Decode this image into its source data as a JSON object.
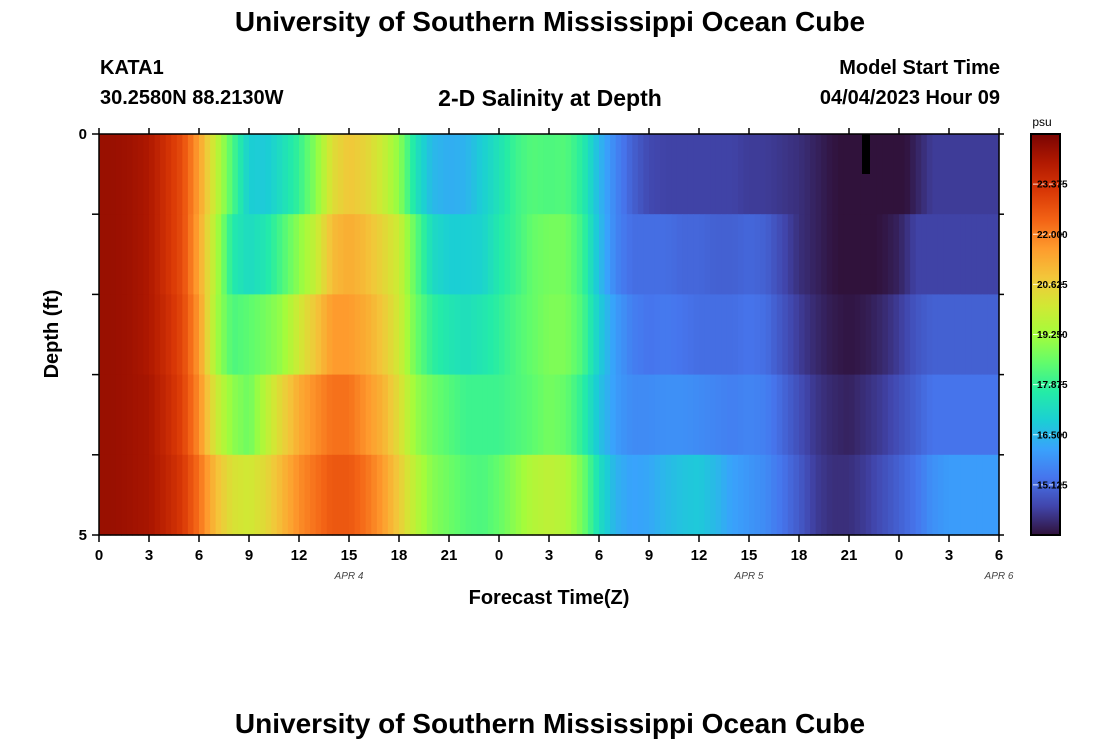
{
  "page": {
    "title": "University of Southern Mississippi Ocean Cube",
    "footer_title": "University of Southern Mississippi Ocean Cube",
    "station": "KATA1",
    "coords": "30.2580N  88.2130W",
    "subtitle": "2-D Salinity at Depth",
    "model_start_label": "Model Start Time",
    "model_start_value": "04/04/2023 Hour 09"
  },
  "chart_data": {
    "type": "heatmap",
    "title": "2-D Salinity at Depth",
    "xlabel": "Forecast Time(Z)",
    "ylabel": "Depth (ft)",
    "colorbar_unit": "psu",
    "x_tick_labels": [
      "0",
      "3",
      "6",
      "9",
      "12",
      "15",
      "18",
      "21",
      "0",
      "3",
      "6",
      "9",
      "12",
      "15",
      "18",
      "21",
      "0",
      "3",
      "6"
    ],
    "x_hours": [
      0,
      3,
      6,
      9,
      12,
      15,
      18,
      21,
      24,
      27,
      30,
      33,
      36,
      39,
      42,
      45,
      48,
      51,
      54
    ],
    "date_labels": [
      {
        "hour": 15,
        "label": "APR 4"
      },
      {
        "hour": 39,
        "label": "APR 5"
      },
      {
        "hour": 54,
        "label": "APR 6"
      }
    ],
    "xlim": [
      0,
      54
    ],
    "y_tick_labels": [
      "0",
      "5"
    ],
    "ylim": [
      0,
      5
    ],
    "depth_levels": [
      0,
      1,
      2,
      3,
      4,
      5
    ],
    "colorbar_ticks": [
      23.375,
      22.0,
      20.625,
      19.25,
      17.875,
      16.5,
      15.125
    ],
    "colorbar_tick_labels": [
      "23.375",
      "22.000",
      "20.625",
      "19.250",
      "17.875",
      "16.500",
      "15.125"
    ],
    "color_range": [
      13.75,
      24.75
    ],
    "colormap": [
      "#30123b",
      "#4145ab",
      "#4675ed",
      "#39a2fc",
      "#1bcfd4",
      "#24eca6",
      "#61fc6c",
      "#a4fc3b",
      "#d1e834",
      "#f3c63a",
      "#fe9b2d",
      "#f36315",
      "#d93806",
      "#b11901",
      "#7a0402"
    ],
    "hour_samples": [
      0,
      1,
      2,
      3,
      4,
      5,
      6,
      7,
      8,
      9,
      10,
      11,
      12,
      13,
      14,
      15,
      16,
      17,
      18,
      19,
      20,
      21,
      22,
      23,
      24,
      25,
      26,
      27,
      28,
      29,
      30,
      31,
      32,
      33,
      34,
      35,
      36,
      37,
      38,
      39,
      40,
      41,
      42,
      43,
      44,
      45,
      46,
      47,
      48,
      49,
      50,
      51,
      52,
      53,
      54
    ],
    "salinity_by_layer": [
      [
        24.3,
        24.3,
        24.2,
        24.0,
        23.4,
        22.8,
        21.5,
        19.8,
        18.2,
        16.9,
        16.8,
        17.3,
        17.9,
        18.9,
        20.3,
        20.8,
        20.5,
        19.9,
        19.0,
        17.4,
        16.5,
        16.3,
        16.4,
        16.9,
        17.4,
        18.0,
        18.3,
        18.2,
        18.3,
        17.7,
        16.5,
        15.6,
        15.0,
        14.6,
        14.5,
        14.5,
        14.5,
        14.5,
        14.5,
        14.4,
        14.4,
        14.3,
        14.2,
        14.0,
        13.8,
        13.7,
        13.5,
        13.6,
        13.6,
        14.0,
        14.4,
        14.4,
        14.4,
        14.4,
        14.4
      ],
      [
        24.3,
        24.3,
        24.2,
        24.0,
        23.4,
        22.8,
        21.4,
        19.5,
        17.6,
        17.2,
        17.5,
        18.2,
        19.0,
        19.8,
        21.0,
        21.3,
        21.0,
        20.5,
        19.9,
        18.4,
        17.2,
        16.9,
        16.9,
        17.0,
        17.6,
        18.0,
        18.5,
        18.7,
        18.7,
        18.0,
        16.6,
        15.6,
        15.2,
        15.2,
        15.2,
        15.1,
        15.1,
        15.0,
        15.0,
        15.1,
        15.0,
        14.6,
        14.2,
        14.0,
        13.8,
        13.7,
        13.7,
        13.8,
        14.0,
        14.5,
        14.5,
        14.5,
        14.5,
        14.5,
        14.5
      ],
      [
        24.3,
        24.3,
        24.2,
        24.0,
        23.5,
        22.9,
        21.6,
        19.3,
        18.2,
        18.4,
        18.7,
        19.1,
        20.0,
        20.8,
        21.6,
        21.6,
        21.3,
        20.8,
        20.0,
        18.6,
        17.8,
        17.5,
        17.3,
        17.5,
        17.8,
        18.2,
        18.5,
        18.8,
        18.8,
        18.2,
        16.9,
        16.0,
        15.5,
        15.3,
        15.4,
        15.3,
        15.2,
        15.2,
        15.2,
        15.3,
        15.2,
        14.8,
        14.4,
        14.1,
        13.9,
        13.8,
        13.9,
        14.1,
        14.4,
        14.8,
        15.0,
        15.0,
        15.0,
        15.0,
        15.0
      ],
      [
        24.3,
        24.3,
        24.2,
        24.1,
        23.6,
        23.0,
        21.8,
        20.0,
        19.0,
        18.6,
        19.6,
        20.5,
        21.3,
        21.8,
        22.2,
        22.2,
        21.7,
        21.2,
        20.3,
        19.1,
        18.6,
        18.3,
        18.0,
        18.0,
        18.0,
        18.2,
        18.4,
        18.7,
        18.5,
        17.8,
        16.7,
        16.0,
        15.7,
        15.7,
        15.8,
        15.8,
        15.7,
        15.6,
        15.5,
        15.6,
        15.5,
        15.1,
        14.7,
        14.3,
        14.1,
        14.0,
        14.2,
        14.4,
        14.7,
        15.0,
        15.3,
        15.3,
        15.3,
        15.3,
        15.3
      ],
      [
        24.3,
        24.3,
        24.2,
        24.1,
        23.7,
        23.2,
        22.2,
        21.0,
        20.2,
        20.0,
        20.4,
        21.1,
        21.8,
        22.2,
        22.6,
        22.6,
        22.2,
        21.6,
        20.7,
        19.6,
        18.9,
        18.6,
        18.3,
        18.2,
        18.5,
        19.0,
        19.5,
        19.7,
        19.5,
        18.7,
        17.3,
        16.4,
        16.1,
        16.2,
        16.5,
        16.7,
        16.8,
        16.5,
        16.1,
        15.9,
        15.7,
        15.3,
        14.9,
        14.4,
        14.2,
        14.2,
        14.4,
        14.7,
        15.0,
        15.3,
        15.8,
        16.0,
        16.0,
        16.0,
        16.0
      ]
    ]
  }
}
